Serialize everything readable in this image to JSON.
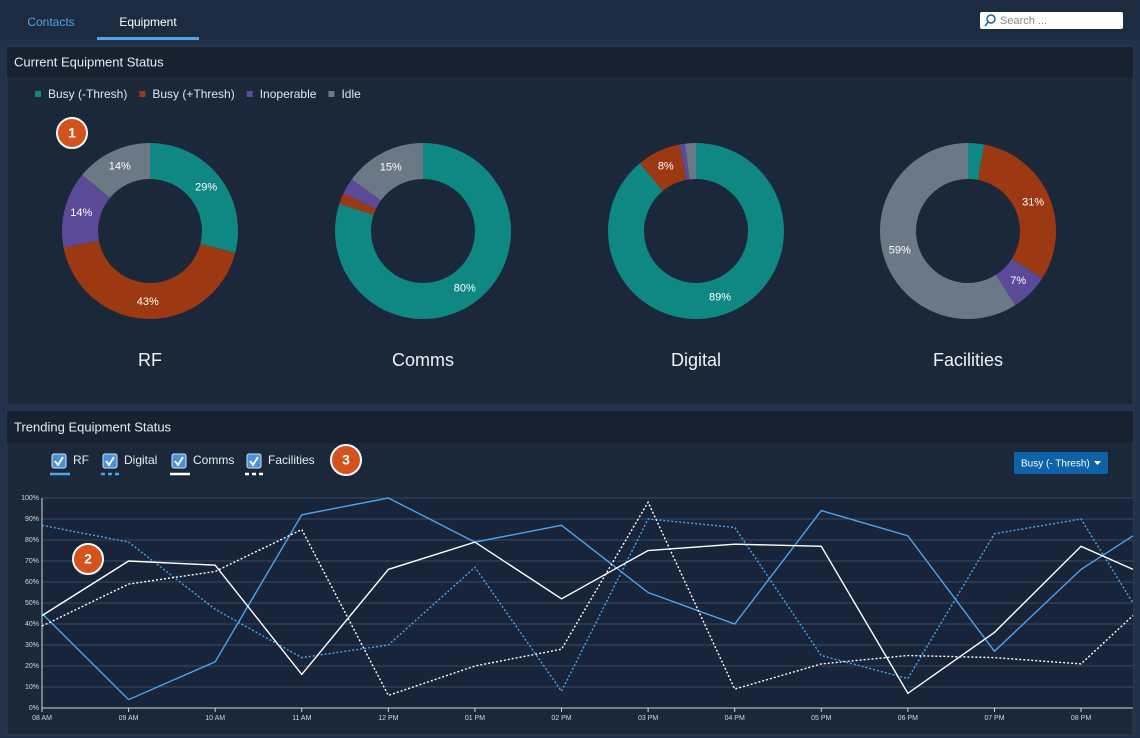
{
  "nav": {
    "tabs": [
      "Contacts",
      "Equipment"
    ],
    "active_tab": 1,
    "search_placeholder": "Search ..."
  },
  "status_panel": {
    "title": "Current Equipment Status",
    "badge": "1",
    "legend": [
      {
        "name": "Busy (-Thresh)",
        "color": "#0f8783"
      },
      {
        "name": "Busy (+Thresh)",
        "color": "#9c3812"
      },
      {
        "name": "Inoperable",
        "color": "#5a4a98"
      },
      {
        "name": "Idle",
        "color": "#6b7886"
      }
    ]
  },
  "trend_panel": {
    "title": "Trending Equipment Status",
    "badges": [
      "2",
      "3"
    ],
    "dropdown": "Busy (- Thresh)"
  },
  "chart_data": [
    {
      "type": "donut",
      "title": "RF",
      "values": [
        29,
        43,
        14,
        14
      ],
      "value_labels": [
        "29%",
        "43%",
        "14%",
        "14%"
      ]
    },
    {
      "type": "donut",
      "title": "Comms",
      "values": [
        80,
        2,
        3,
        15
      ],
      "value_labels": [
        "80%",
        null,
        null,
        "15%"
      ]
    },
    {
      "type": "donut",
      "title": "Digital",
      "values": [
        89,
        8,
        1,
        2
      ],
      "value_labels": [
        "89%",
        "8%",
        null,
        null
      ]
    },
    {
      "type": "donut",
      "title": "Facilities",
      "values": [
        3,
        31,
        7,
        59
      ],
      "value_labels": [
        null,
        "31%",
        "7%",
        "59%"
      ]
    },
    {
      "type": "line",
      "x": [
        8,
        9,
        10,
        11,
        12,
        13,
        14,
        15,
        16,
        17,
        18,
        19,
        20,
        20.6
      ],
      "xlim": [
        8,
        20.6
      ],
      "xticks": [
        {
          "value": 8,
          "label": "08 AM"
        },
        {
          "value": 9,
          "label": "09 AM"
        },
        {
          "value": 10,
          "label": "10 AM"
        },
        {
          "value": 11,
          "label": "11 AM"
        },
        {
          "value": 12,
          "label": "12 PM"
        },
        {
          "value": 13,
          "label": "01 PM"
        },
        {
          "value": 14,
          "label": "02 PM"
        },
        {
          "value": 15,
          "label": "03 PM"
        },
        {
          "value": 16,
          "label": "04 PM"
        },
        {
          "value": 17,
          "label": "05 PM"
        },
        {
          "value": 18,
          "label": "06 PM"
        },
        {
          "value": 19,
          "label": "07 PM"
        },
        {
          "value": 20,
          "label": "08 PM"
        }
      ],
      "ylim": [
        0,
        100
      ],
      "yticks": [
        {
          "value": 0,
          "label": "0%"
        },
        {
          "value": 10,
          "label": "10%"
        },
        {
          "value": 20,
          "label": "20%"
        },
        {
          "value": 30,
          "label": "30%"
        },
        {
          "value": 40,
          "label": "40%"
        },
        {
          "value": 50,
          "label": "50%"
        },
        {
          "value": 60,
          "label": "60%"
        },
        {
          "value": 70,
          "label": "70%"
        },
        {
          "value": 80,
          "label": "80%"
        },
        {
          "value": 90,
          "label": "90%"
        },
        {
          "value": 100,
          "label": "100%"
        }
      ],
      "grid": true,
      "series": [
        {
          "name": "RF",
          "color": "#4da3ec",
          "style": "solid",
          "checked": true,
          "values": [
            45,
            4,
            22,
            92,
            100,
            79,
            87,
            55,
            40,
            94,
            82,
            27,
            66,
            82
          ]
        },
        {
          "name": "Digital",
          "color": "#4da3ec",
          "style": "dotted",
          "checked": true,
          "values": [
            87,
            79,
            47,
            24,
            30,
            67,
            8,
            90,
            86,
            25,
            14,
            83,
            90,
            50
          ]
        },
        {
          "name": "Comms",
          "color": "#ffffff",
          "style": "solid",
          "checked": true,
          "values": [
            44,
            70,
            68,
            16,
            66,
            79,
            52,
            75,
            78,
            77,
            7,
            36,
            77,
            66
          ]
        },
        {
          "name": "Facilities",
          "color": "#ffffff",
          "style": "dotted",
          "checked": true,
          "values": [
            39,
            59,
            65,
            85,
            6,
            20,
            28,
            98,
            9,
            21,
            25,
            24,
            21,
            44
          ]
        }
      ]
    }
  ]
}
